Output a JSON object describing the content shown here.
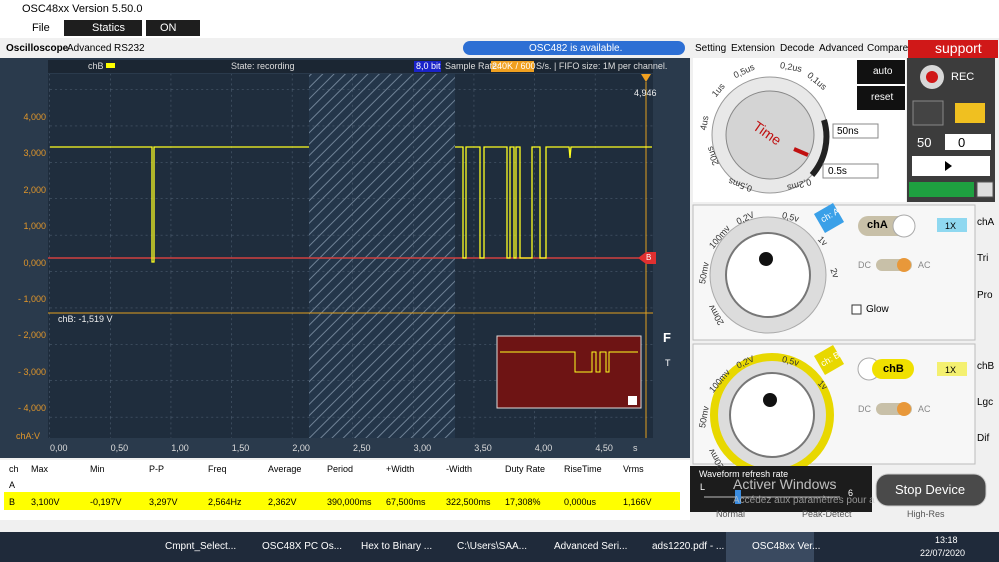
{
  "window": {
    "title": "OSC48xx  Version 5.50.0"
  },
  "menu": [
    "File",
    "Statics",
    "ON"
  ],
  "tabs": [
    "Oscilloscope",
    "Advanced",
    "RS232"
  ],
  "banner": "OSC482  is available.",
  "scope": {
    "channel": "chB",
    "state": "State: recording",
    "bits": "8,0 bit",
    "sample_rate_label": "Sample Rate:",
    "sample_rate": "240K / 600",
    "fifo": "S/s. | FIFO size: 1M per channel.",
    "trigger_value": "4,946",
    "y_labels": [
      "4,000",
      "3,000",
      "2,000",
      "1,000",
      "0,000",
      "- 1,000",
      "- 2,000",
      "- 3,000",
      "- 4,000"
    ],
    "y_unit": "chA:V",
    "x_labels": [
      "0,00",
      "0,50",
      "1,00",
      "1,50",
      "2,00",
      "2,50",
      "3,00",
      "3,50",
      "4,00",
      "4,50"
    ],
    "x_unit": "s",
    "cursor_label": "chB: -1,519 V",
    "side": [
      "F",
      "T"
    ],
    "marker": "B"
  },
  "measurements": {
    "header": [
      "ch",
      "Max",
      "Min",
      "P-P",
      "Freq",
      "Average",
      "Period",
      "+Width",
      "-Width",
      "Duty Rate",
      "RiseTime",
      "Vrms"
    ],
    "rows": [
      [
        "A"
      ],
      [
        "B",
        "3,100V",
        "-0,197V",
        "3,297V",
        "2,564Hz",
        "2,362V",
        "390,000ms",
        "67,500ms",
        "322,500ms",
        "17,308%",
        "0,000us",
        "1,166V"
      ]
    ]
  },
  "settings": {
    "tabs": [
      "Setting",
      "Extension",
      "Decode",
      "Advanced",
      "Compare"
    ],
    "support": "support",
    "time_knob": {
      "name": "Time",
      "labels": [
        "1us",
        "0,5us",
        "0,2us",
        "0,1us",
        "4us",
        "20us",
        "0,5ms",
        "0,2ms"
      ]
    },
    "time_select": [
      "50ns",
      "0.5s"
    ],
    "buttons": [
      "auto",
      "reset"
    ],
    "rec": "REC",
    "counter": [
      "50",
      "0"
    ],
    "cha": {
      "tag": "ch: A",
      "button": "chA",
      "probe": "1X",
      "coupling": [
        "DC",
        "AC"
      ],
      "labels": [
        "100mv",
        "0,2V",
        "0,5v",
        "1v",
        "2v",
        "50mv",
        "20mv"
      ],
      "glow": "Glow"
    },
    "chb": {
      "tag": "ch: B",
      "button": "chB",
      "probe": "1X",
      "coupling": [
        "DC",
        "AC"
      ],
      "labels": [
        "100mv",
        "0,2V",
        "0,5v",
        "1v",
        "50mv",
        "20mv"
      ]
    },
    "side_tabs": [
      "chA",
      "Tri",
      "Pro",
      "chB",
      "Lgc",
      "Dif"
    ],
    "refresh": {
      "title": "Waveform refresh rate",
      "min": "L",
      "value": "6"
    },
    "stop": "Stop Device",
    "modes": [
      "Normal",
      "Peak-Detect",
      "High-Res"
    ],
    "watermark": [
      "Activer Windows",
      "Accédez aux paramètres pour a"
    ]
  },
  "taskbar": {
    "items": [
      "Cmpnt_Select...",
      "OSC48X PC Os...",
      "Hex to Binary ...",
      "C:\\Users\\SAA...",
      "Advanced Seri...",
      "ads1220.pdf - ...",
      "OSC48xx Ver..."
    ],
    "time": "13:18",
    "date": "22/07/2020"
  }
}
